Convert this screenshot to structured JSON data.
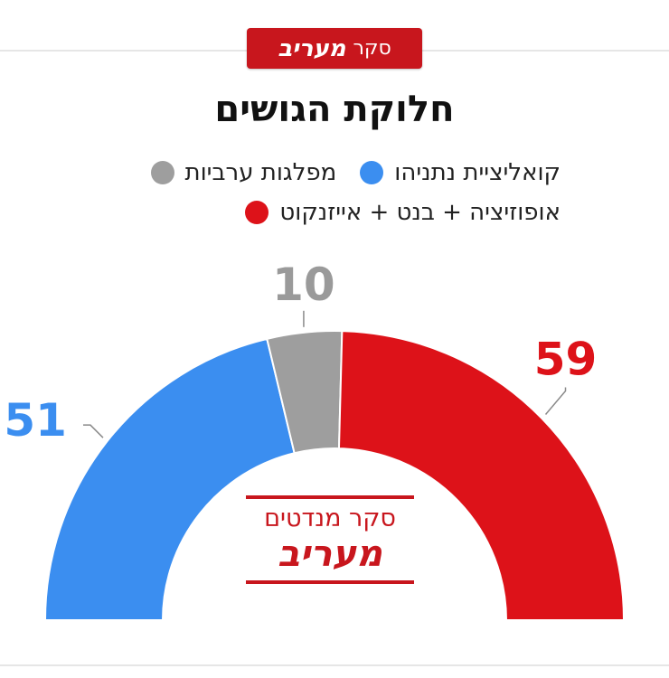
{
  "header": {
    "badge_word1": "סקר",
    "badge_word2": "מעריב"
  },
  "chart_data": {
    "type": "pie",
    "style": "half-donut",
    "title": "חלוקת הגושים",
    "total": 120,
    "series": [
      {
        "name": "קואליציית נתניהו",
        "value": 51,
        "color": "#3b8ef0"
      },
      {
        "name": "מפלגות ערביות",
        "value": 10,
        "color": "#9e9e9e"
      },
      {
        "name": "אופוזיציה + בנט + אייזנקוט",
        "value": 59,
        "color": "#dd1219"
      }
    ],
    "legend_placement": "top"
  },
  "stamp": {
    "line1": "סקר מנדטים",
    "line2": "מעריב"
  }
}
